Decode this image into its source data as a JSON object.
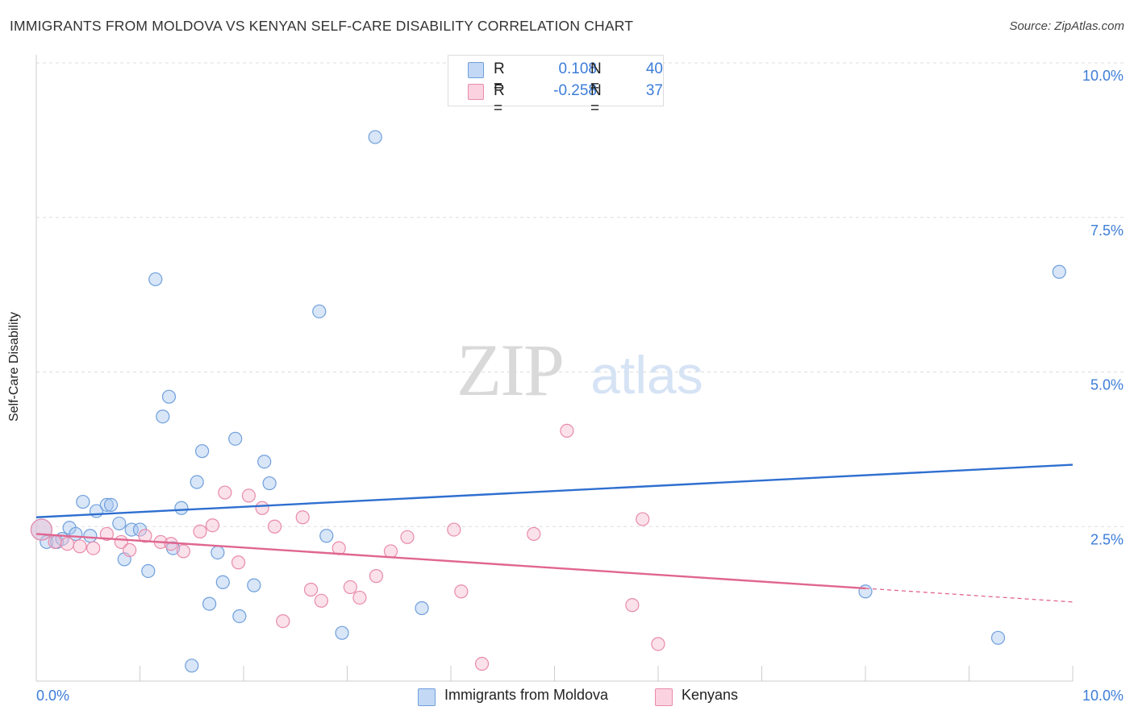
{
  "title": "IMMIGRANTS FROM MOLDOVA VS KENYAN SELF-CARE DISABILITY CORRELATION CHART",
  "source": "Source: ZipAtlas.com",
  "watermark": {
    "zip": "ZIP",
    "atlas": "atlas"
  },
  "legend_top": {
    "rows": [
      {
        "r_label": "R =",
        "r_value": "0.108",
        "n_label": "N =",
        "n_value": "40",
        "color": "#a9c8f0",
        "border": "#6f9fdc"
      },
      {
        "r_label": "R =",
        "r_value": "-0.258",
        "n_label": "N =",
        "n_value": "37",
        "color": "#f7bcd0",
        "border": "#e98aaa"
      }
    ]
  },
  "chart_data": {
    "type": "scatter",
    "title": "IMMIGRANTS FROM MOLDOVA VS KENYAN SELF-CARE DISABILITY CORRELATION CHART",
    "xlabel": "",
    "ylabel": "Self-Care Disability",
    "xlim": [
      0,
      10
    ],
    "ylim": [
      0,
      10
    ],
    "x_tick_labels": [
      "0.0%",
      "10.0%"
    ],
    "y_tick_labels": [
      "2.5%",
      "5.0%",
      "7.5%",
      "10.0%"
    ],
    "y_ticks": [
      2.5,
      5.0,
      7.5,
      10.0
    ],
    "grid": true,
    "legend_position": "bottom",
    "series": [
      {
        "name": "Immigrants from Moldova",
        "color": "#a9c8f0",
        "stroke": "#6f9fdc",
        "line_color": "#2f6fd0",
        "trend": {
          "x": [
            0,
            10
          ],
          "y": [
            2.65,
            3.5
          ]
        },
        "points": [
          {
            "x": 0.05,
            "y": 2.45,
            "big": true
          },
          {
            "x": 0.1,
            "y": 2.25
          },
          {
            "x": 0.2,
            "y": 2.25
          },
          {
            "x": 0.25,
            "y": 2.3
          },
          {
            "x": 0.32,
            "y": 2.48
          },
          {
            "x": 0.38,
            "y": 2.38
          },
          {
            "x": 0.45,
            "y": 2.9
          },
          {
            "x": 0.52,
            "y": 2.35
          },
          {
            "x": 0.58,
            "y": 2.75
          },
          {
            "x": 0.68,
            "y": 2.85
          },
          {
            "x": 0.72,
            "y": 2.85
          },
          {
            "x": 0.8,
            "y": 2.55
          },
          {
            "x": 0.85,
            "y": 1.97
          },
          {
            "x": 0.92,
            "y": 2.45
          },
          {
            "x": 1.0,
            "y": 2.45
          },
          {
            "x": 1.08,
            "y": 1.78
          },
          {
            "x": 1.15,
            "y": 6.5
          },
          {
            "x": 1.22,
            "y": 4.28
          },
          {
            "x": 1.28,
            "y": 4.6
          },
          {
            "x": 1.32,
            "y": 2.15
          },
          {
            "x": 1.4,
            "y": 2.8
          },
          {
            "x": 1.5,
            "y": 0.25
          },
          {
            "x": 1.55,
            "y": 3.22
          },
          {
            "x": 1.6,
            "y": 3.72
          },
          {
            "x": 1.67,
            "y": 1.25
          },
          {
            "x": 1.75,
            "y": 2.08
          },
          {
            "x": 1.8,
            "y": 1.6
          },
          {
            "x": 1.92,
            "y": 3.92
          },
          {
            "x": 1.96,
            "y": 1.05
          },
          {
            "x": 2.1,
            "y": 1.55
          },
          {
            "x": 2.2,
            "y": 3.55
          },
          {
            "x": 2.25,
            "y": 3.2
          },
          {
            "x": 2.73,
            "y": 5.98
          },
          {
            "x": 2.8,
            "y": 2.35
          },
          {
            "x": 2.95,
            "y": 0.78
          },
          {
            "x": 3.27,
            "y": 8.8
          },
          {
            "x": 3.72,
            "y": 1.18
          },
          {
            "x": 8.0,
            "y": 1.45
          },
          {
            "x": 9.28,
            "y": 0.7
          },
          {
            "x": 9.87,
            "y": 6.62
          }
        ]
      },
      {
        "name": "Kenyans",
        "color": "#f7bcd0",
        "stroke": "#e98aaa",
        "line_color": "#e0668f",
        "trend": {
          "x": [
            0,
            8.0
          ],
          "y": [
            2.38,
            1.5
          ],
          "dashed_to": [
            10,
            1.28
          ]
        },
        "points": [
          {
            "x": 0.05,
            "y": 2.45,
            "big": true
          },
          {
            "x": 0.18,
            "y": 2.25
          },
          {
            "x": 0.3,
            "y": 2.22
          },
          {
            "x": 0.42,
            "y": 2.18
          },
          {
            "x": 0.55,
            "y": 2.15
          },
          {
            "x": 0.68,
            "y": 2.38
          },
          {
            "x": 0.82,
            "y": 2.25
          },
          {
            "x": 0.9,
            "y": 2.12
          },
          {
            "x": 1.05,
            "y": 2.35
          },
          {
            "x": 1.2,
            "y": 2.25
          },
          {
            "x": 1.3,
            "y": 2.22
          },
          {
            "x": 1.42,
            "y": 2.1
          },
          {
            "x": 1.58,
            "y": 2.42
          },
          {
            "x": 1.7,
            "y": 2.52
          },
          {
            "x": 1.82,
            "y": 3.05
          },
          {
            "x": 1.95,
            "y": 1.92
          },
          {
            "x": 2.05,
            "y": 3.0
          },
          {
            "x": 2.18,
            "y": 2.8
          },
          {
            "x": 2.3,
            "y": 2.5
          },
          {
            "x": 2.38,
            "y": 0.97
          },
          {
            "x": 2.57,
            "y": 2.65
          },
          {
            "x": 2.65,
            "y": 1.48
          },
          {
            "x": 2.75,
            "y": 1.3
          },
          {
            "x": 2.92,
            "y": 2.15
          },
          {
            "x": 3.03,
            "y": 1.52
          },
          {
            "x": 3.12,
            "y": 1.35
          },
          {
            "x": 3.28,
            "y": 1.7
          },
          {
            "x": 3.42,
            "y": 2.1
          },
          {
            "x": 3.58,
            "y": 2.33
          },
          {
            "x": 4.03,
            "y": 2.45
          },
          {
            "x": 4.1,
            "y": 1.45
          },
          {
            "x": 4.3,
            "y": 0.28
          },
          {
            "x": 4.8,
            "y": 2.38
          },
          {
            "x": 5.12,
            "y": 4.05
          },
          {
            "x": 5.75,
            "y": 1.23
          },
          {
            "x": 5.85,
            "y": 2.62
          },
          {
            "x": 6.0,
            "y": 0.6
          }
        ]
      }
    ]
  }
}
